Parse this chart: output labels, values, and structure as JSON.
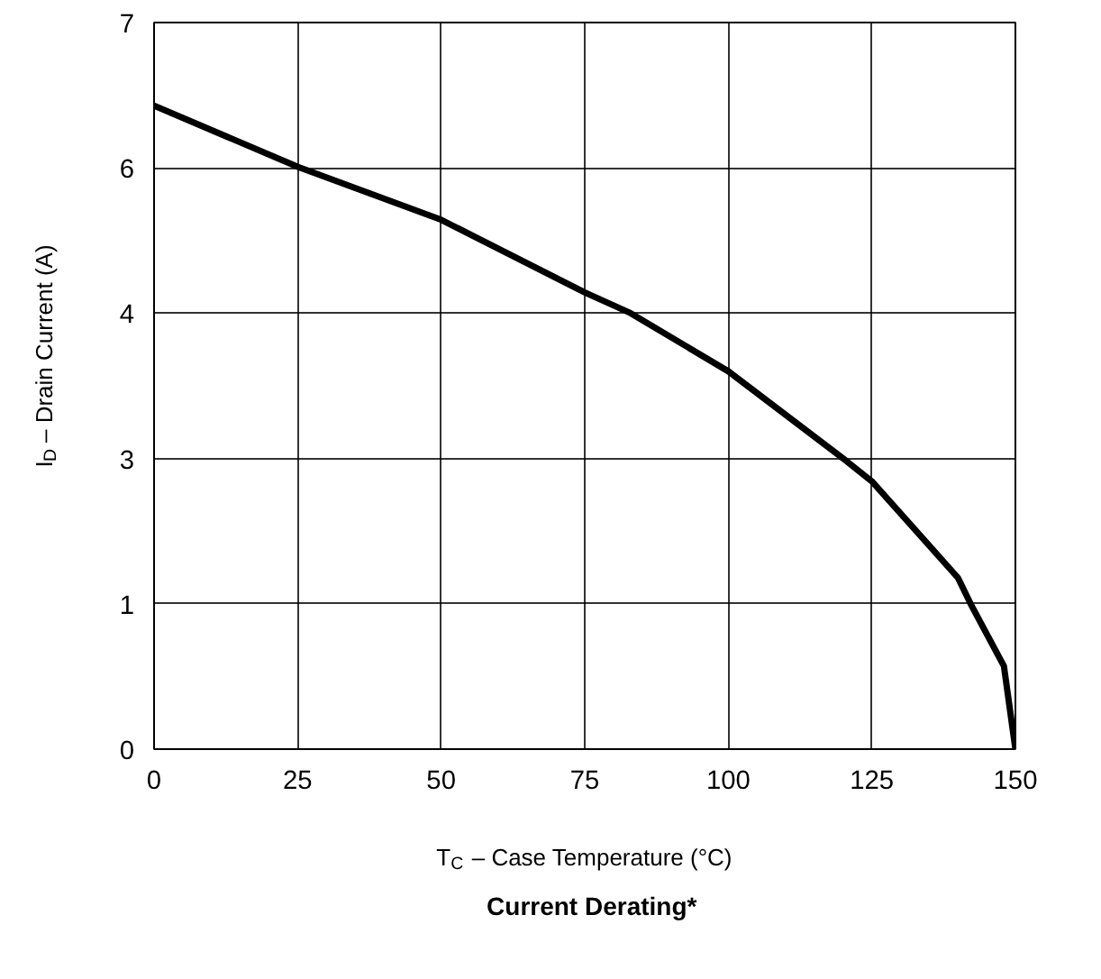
{
  "chart_data": {
    "type": "line",
    "title": "Current Derating*",
    "xlabel": "T$_{C}$ – Case Temperature (°C)",
    "ylabel": "I$_{D}$ – Drain Current (A)",
    "x": [
      0,
      25,
      50,
      75,
      83,
      100,
      120,
      125,
      140,
      142.2,
      148,
      150
    ],
    "series": [
      {
        "color": "#000000",
        "values": [
          6.2,
          5.61,
          5.1,
          4.4,
          4.2,
          3.64,
          2.8,
          2.58,
          1.65,
          1.4,
          0.8,
          0
        ]
      }
    ],
    "xlim": [
      0,
      150
    ],
    "xticks": [
      0,
      25,
      50,
      75,
      100,
      125,
      150
    ],
    "ylim": [
      0,
      7
    ],
    "yticks": [
      0,
      {
        "value": 1.4,
        "label": "1"
      },
      {
        "value": 2.8,
        "label": "3"
      },
      {
        "value": 4.2,
        "label": "4"
      },
      {
        "value": 5.6,
        "label": "6"
      },
      {
        "value": 7,
        "label": "7"
      }
    ],
    "grid": true,
    "marker": "none",
    "line_style": "solid"
  }
}
